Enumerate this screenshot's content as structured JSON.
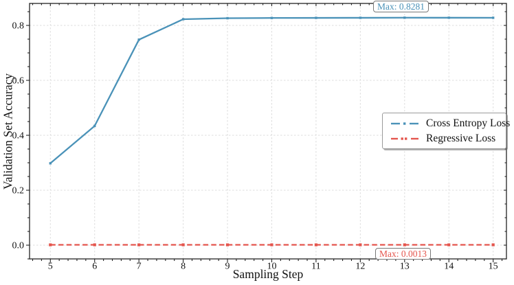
{
  "chart_data": {
    "type": "line",
    "title": "",
    "xlabel": "Sampling Step",
    "ylabel": "Validation Set Accuracy",
    "x": [
      5,
      6,
      7,
      8,
      9,
      10,
      11,
      12,
      13,
      14,
      15
    ],
    "x_ticks": [
      5,
      6,
      7,
      8,
      9,
      10,
      11,
      12,
      13,
      14,
      15
    ],
    "y_ticks": [
      0.0,
      0.2,
      0.4,
      0.6,
      0.8
    ],
    "y_tick_labels": [
      "0.0",
      "0.2",
      "0.4",
      "0.6",
      "0.8"
    ],
    "xlim": [
      4.53,
      15.3
    ],
    "ylim": [
      -0.05,
      0.88
    ],
    "grid": true,
    "grid_style": "dashed",
    "legend_position": "center right",
    "series": [
      {
        "name": "Cross Entropy Loss",
        "color": "#4A92B8",
        "linestyle": "solid",
        "marker": "square",
        "values": [
          0.298,
          0.434,
          0.748,
          0.8225,
          0.8262,
          0.8271,
          0.8274,
          0.8277,
          0.8281,
          0.828,
          0.8278
        ]
      },
      {
        "name": "Regressive Loss",
        "color": "#E4554D",
        "linestyle": "dashed",
        "marker": "square",
        "values": [
          0.0012,
          0.0013,
          0.0012,
          0.0013,
          0.0012,
          0.0013,
          0.0012,
          0.0013,
          0.0013,
          0.0012,
          0.0013
        ]
      }
    ],
    "annotations": [
      {
        "text": "Max: 0.8281",
        "series": "Cross Entropy Loss",
        "color": "#4A92B8"
      },
      {
        "text": "Max: 0.0013",
        "series": "Regressive Loss",
        "color": "#E4554D"
      }
    ]
  }
}
